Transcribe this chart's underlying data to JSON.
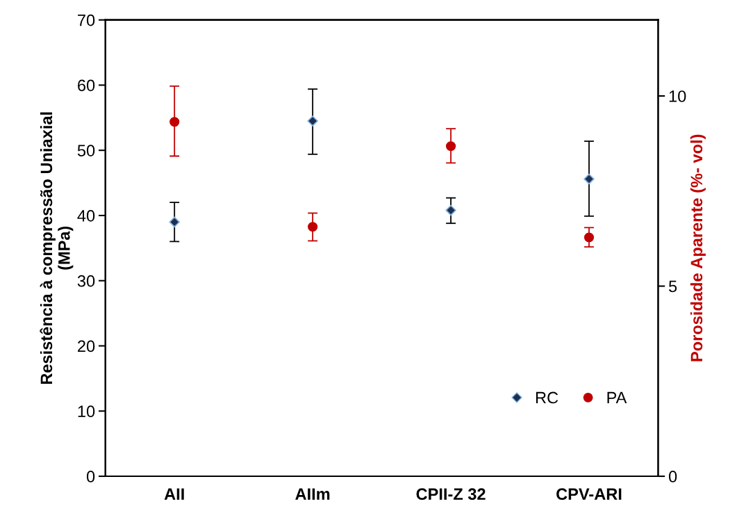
{
  "chart_data": {
    "type": "scatter",
    "categories": [
      "AII",
      "AIIm",
      "CPII-Z 32",
      "CPV-ARI"
    ],
    "ylabel": "Resistência à compressão Uniaxial\n(MPa)",
    "y2label": "Porosidade Aparente (%- vol)",
    "ylim": [
      0,
      70
    ],
    "yticks": [
      0,
      10,
      20,
      30,
      40,
      50,
      60,
      70
    ],
    "y2lim": [
      0,
      12
    ],
    "y2ticks": [
      0,
      5,
      10
    ],
    "legend": "bottom right",
    "grid": false,
    "series": [
      {
        "name": "RC",
        "color": "#1f2f4f",
        "marker": "diamond",
        "values": [
          39,
          54.5,
          40.8,
          45.6
        ],
        "errors": [
          [
            36,
            42
          ],
          [
            49.4,
            59.4
          ],
          [
            38.8,
            42.7
          ],
          [
            39.9,
            51.4
          ]
        ]
      },
      {
        "name": "PA",
        "color": "#c00000",
        "marker": "circle",
        "axis": "y2",
        "values": [
          9.32,
          6.56,
          8.68,
          6.28
        ],
        "errors": [
          [
            8.42,
            10.26
          ],
          [
            6.19,
            6.92
          ],
          [
            8.24,
            9.14
          ],
          [
            6.03,
            6.54
          ]
        ]
      }
    ]
  }
}
